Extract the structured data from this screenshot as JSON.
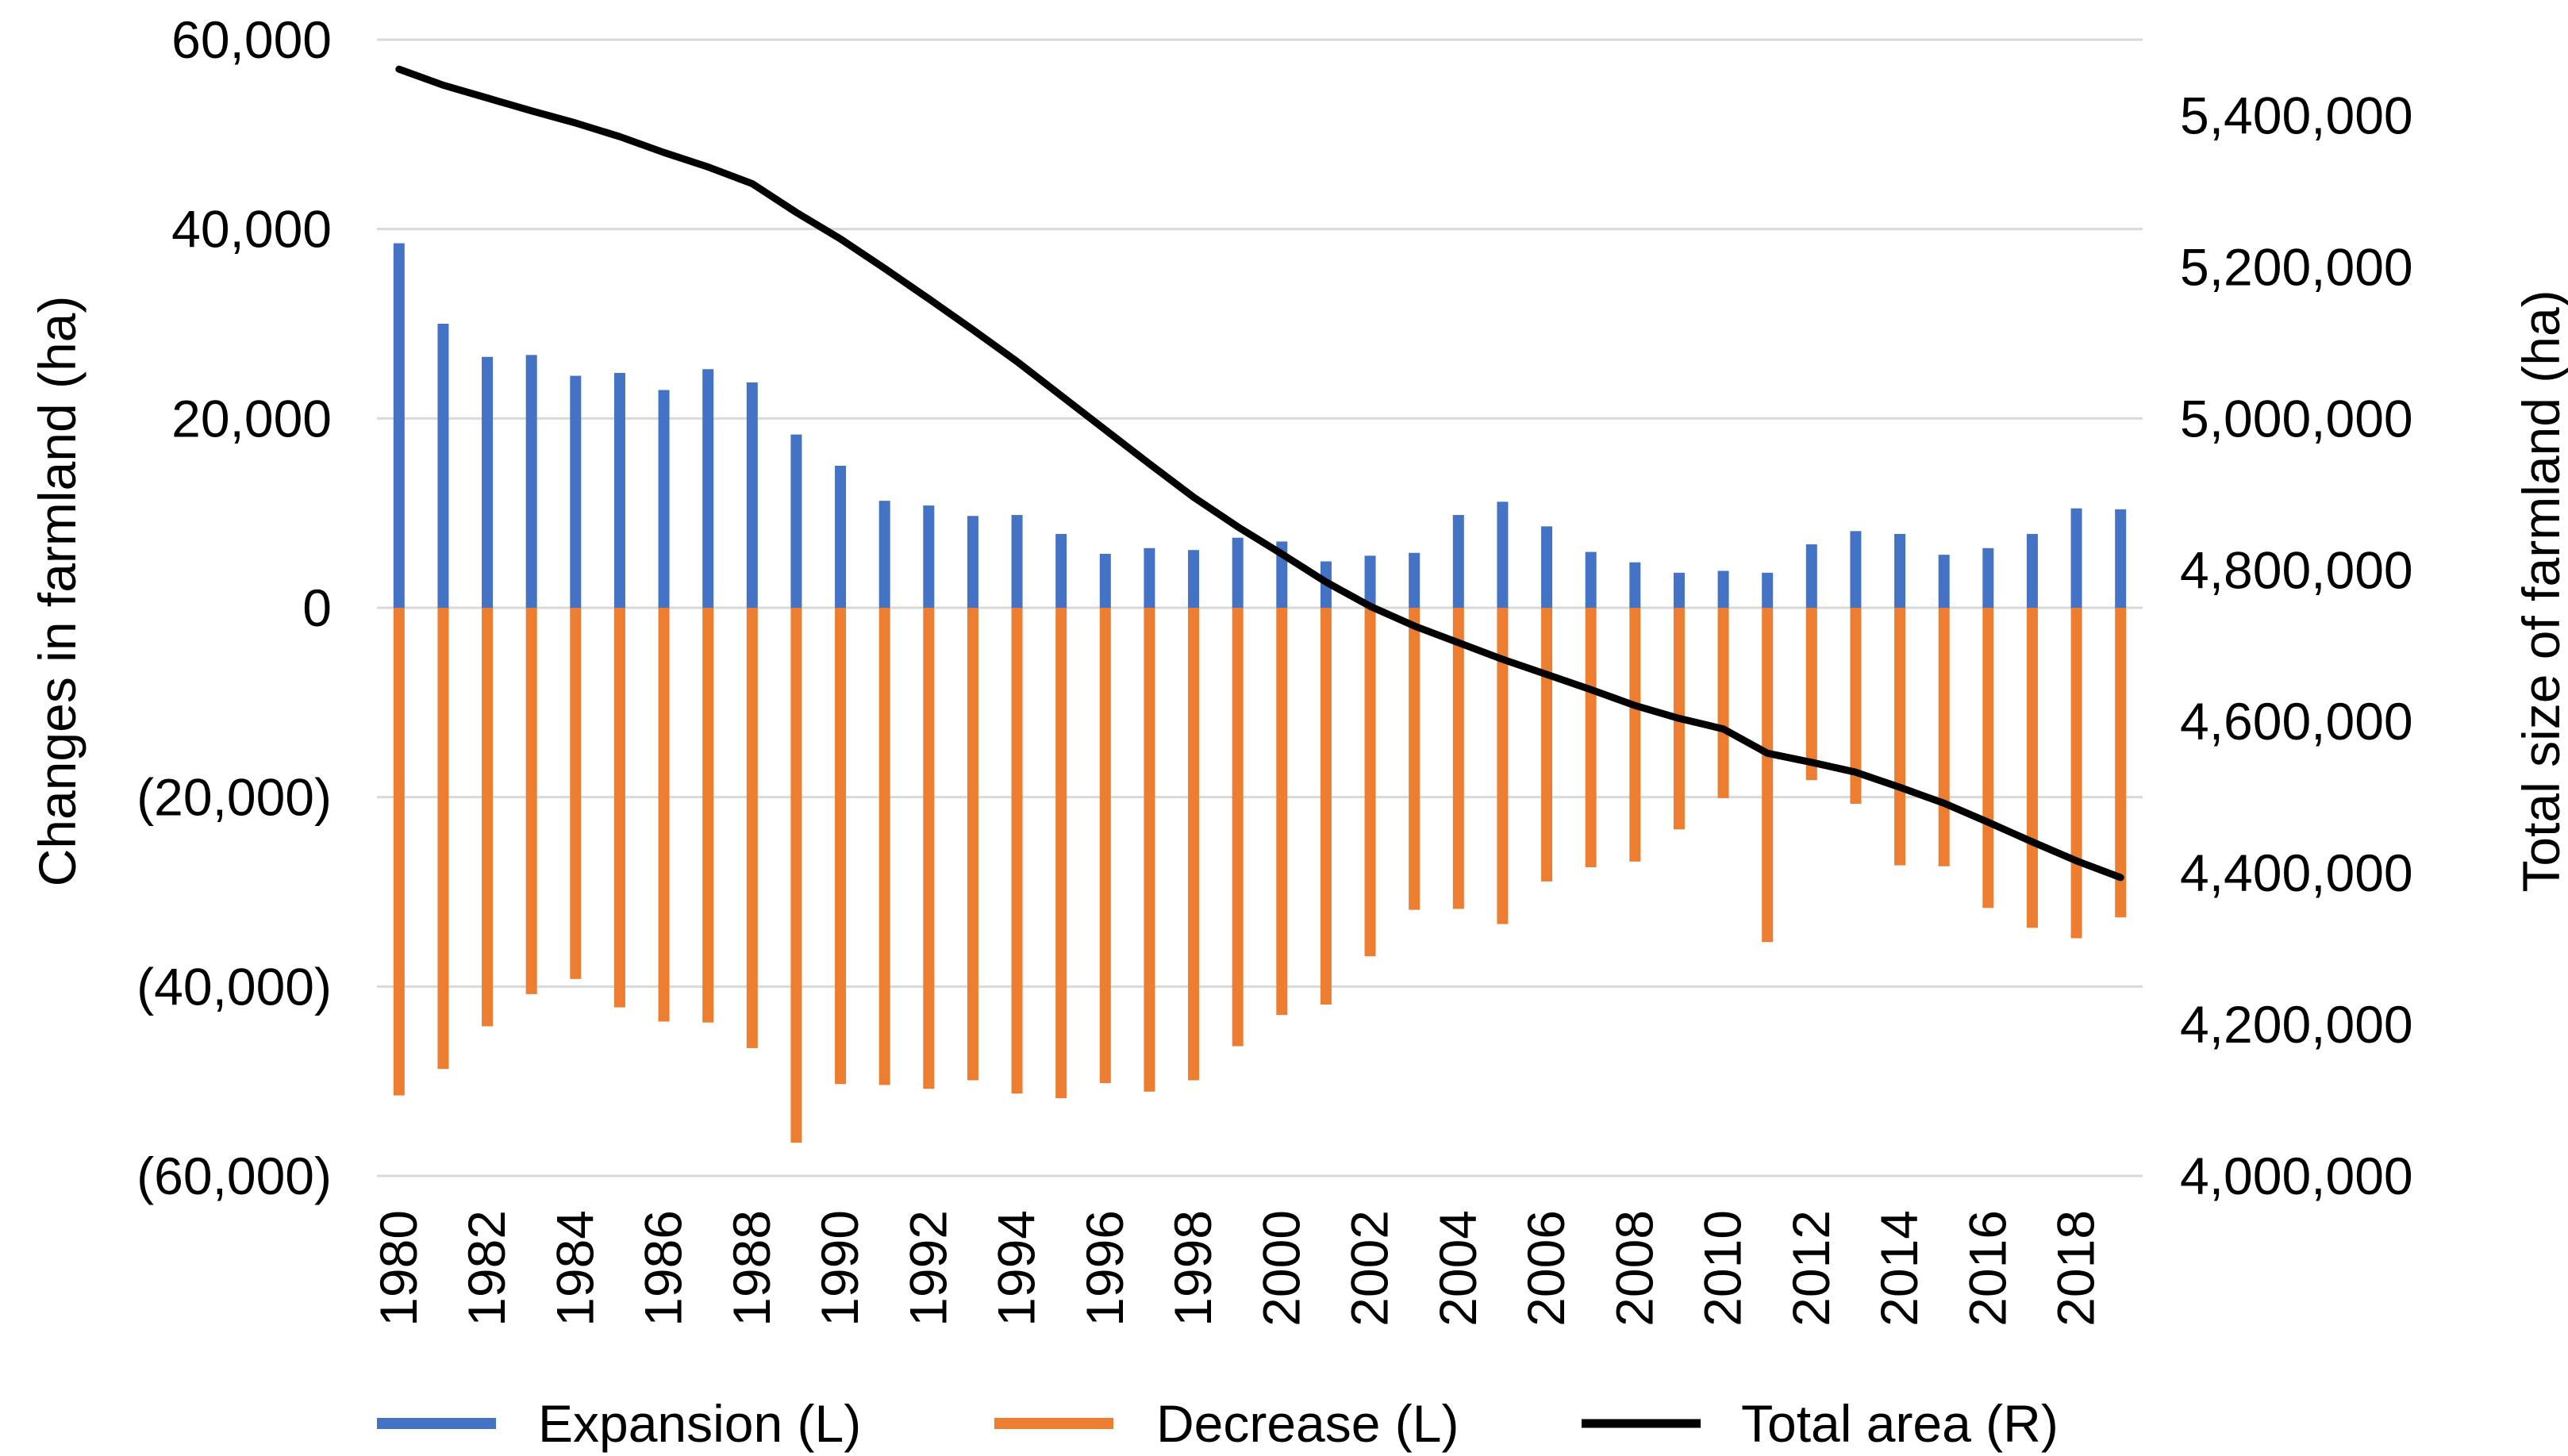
{
  "chart_data": {
    "type": "bar-line-combo",
    "title": "",
    "xlabel": "",
    "ylabel_left": "Changes in farmland (ha)",
    "ylabel_right": "Total size of farmland (ha)",
    "ylim_left": [
      -60000,
      60000
    ],
    "ylim_right": [
      4000000,
      5500000
    ],
    "left_ticks": [
      {
        "value": 60000,
        "label": "60,000",
        "color": "#000000"
      },
      {
        "value": 40000,
        "label": "40,000",
        "color": "#000000"
      },
      {
        "value": 20000,
        "label": "20,000",
        "color": "#000000"
      },
      {
        "value": 0,
        "label": "0",
        "color": "#000000"
      },
      {
        "value": -20000,
        "label": "(20,000)",
        "color": "#ff0000"
      },
      {
        "value": -40000,
        "label": "(40,000)",
        "color": "#ff0000"
      },
      {
        "value": -60000,
        "label": "(60,000)",
        "color": "#ff0000"
      }
    ],
    "right_ticks": [
      {
        "value": 5400000,
        "label": "5,400,000"
      },
      {
        "value": 5200000,
        "label": "5,200,000"
      },
      {
        "value": 5000000,
        "label": "5,000,000"
      },
      {
        "value": 4800000,
        "label": "4,800,000"
      },
      {
        "value": 4600000,
        "label": "4,600,000"
      },
      {
        "value": 4400000,
        "label": "4,400,000"
      },
      {
        "value": 4200000,
        "label": "4,200,000"
      },
      {
        "value": 4000000,
        "label": "4,000,000"
      }
    ],
    "categories": [
      "1980",
      "1981",
      "1982",
      "1983",
      "1984",
      "1985",
      "1986",
      "1987",
      "1988",
      "1989",
      "1990",
      "1991",
      "1992",
      "1993",
      "1994",
      "1995",
      "1996",
      "1997",
      "1998",
      "1999",
      "2000",
      "2001",
      "2002",
      "2003",
      "2004",
      "2005",
      "2006",
      "2007",
      "2008",
      "2009",
      "2010",
      "2011",
      "2012",
      "2013",
      "2014",
      "2015",
      "2016",
      "2017",
      "2018",
      "2019"
    ],
    "x_tick_labels": [
      "1980",
      "",
      "1982",
      "",
      "1984",
      "",
      "1986",
      "",
      "1988",
      "",
      "1990",
      "",
      "1992",
      "",
      "1994",
      "",
      "1996",
      "",
      "1998",
      "",
      "2000",
      "",
      "2002",
      "",
      "2004",
      "",
      "2006",
      "",
      "2008",
      "",
      "2010",
      "",
      "2012",
      "",
      "2014",
      "",
      "2016",
      "",
      "2018",
      ""
    ],
    "series": [
      {
        "name": "Expansion (L)",
        "axis": "left",
        "type": "bar",
        "color": "#4472c4",
        "values": [
          38500,
          30000,
          26500,
          26700,
          24500,
          24800,
          23000,
          25200,
          23800,
          18300,
          15000,
          11300,
          10800,
          9700,
          9800,
          7800,
          5700,
          6300,
          6100,
          7400,
          7000,
          4900,
          5500,
          5800,
          9800,
          11200,
          8600,
          5900,
          4800,
          3700,
          3900,
          3700,
          6700,
          8100,
          7800,
          5600,
          6300,
          7800,
          10500,
          10400
        ]
      },
      {
        "name": "Decrease (L)",
        "axis": "left",
        "type": "bar",
        "color": "#ed7d31",
        "values": [
          -51500,
          -48700,
          -44200,
          -40800,
          -39200,
          -42200,
          -43700,
          -43800,
          -46500,
          -56500,
          -50300,
          -50400,
          -50800,
          -49900,
          -51300,
          -51800,
          -50200,
          -51100,
          -49900,
          -46300,
          -43000,
          -41900,
          -36800,
          -31900,
          -31800,
          -33400,
          -28900,
          -27400,
          -26800,
          -23400,
          -20100,
          -35300,
          -18200,
          -20700,
          -27200,
          -27300,
          -31700,
          -33800,
          -34900,
          -32700
        ]
      },
      {
        "name": "Total area (R)",
        "axis": "right",
        "type": "line",
        "color": "#000000",
        "values": [
          5461000,
          5440000,
          5423000,
          5406000,
          5390000,
          5372000,
          5351000,
          5332000,
          5310000,
          5272000,
          5237000,
          5198000,
          5158000,
          5117000,
          5075000,
          5030000,
          4985000,
          4940000,
          4896000,
          4857000,
          4821000,
          4784000,
          4752000,
          4726000,
          4704000,
          4682000,
          4662000,
          4642000,
          4621000,
          4604000,
          4590000,
          4558000,
          4546000,
          4533000,
          4513000,
          4492000,
          4467000,
          4441000,
          4416000,
          4394000
        ]
      }
    ],
    "legend": {
      "placement": "bottom",
      "items": [
        {
          "label": "Expansion (L)",
          "color": "#4472c4"
        },
        {
          "label": "Decrease (L)",
          "color": "#ed7d31"
        },
        {
          "label": "Total area (R)",
          "color": "#000000"
        }
      ]
    },
    "grid": true,
    "grid_color": "#d9d9d9"
  }
}
